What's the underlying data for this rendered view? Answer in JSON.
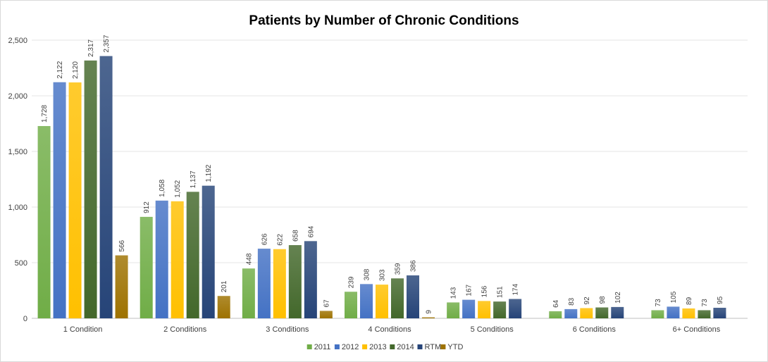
{
  "chart_data": {
    "type": "bar",
    "title": "Patients by Number of Chronic Conditions",
    "xlabel": "",
    "ylabel": "",
    "ylim": [
      0,
      2500
    ],
    "yticks": [
      0,
      500,
      1000,
      1500,
      2000,
      2500
    ],
    "ytick_labels": [
      "0",
      "500",
      "1,000",
      "1,500",
      "2,000",
      "2,500"
    ],
    "grid": true,
    "legend_position": "bottom",
    "categories": [
      "1 Condition",
      "2 Conditions",
      "3 Conditions",
      "4 Conditions",
      "5 Conditions",
      "6 Conditions",
      "6+ Conditions"
    ],
    "series": [
      {
        "name": "2011",
        "color": "#70ad47",
        "values": [
          1728,
          912,
          448,
          239,
          143,
          64,
          73
        ]
      },
      {
        "name": "2012",
        "color": "#4472c4",
        "values": [
          2122,
          1058,
          626,
          308,
          167,
          83,
          105
        ]
      },
      {
        "name": "2013",
        "color": "#ffc000",
        "values": [
          2120,
          1052,
          622,
          303,
          156,
          92,
          89
        ]
      },
      {
        "name": "2014",
        "color": "#43682b",
        "values": [
          2317,
          1137,
          658,
          359,
          151,
          98,
          73
        ]
      },
      {
        "name": "RTM",
        "color": "#264478",
        "values": [
          2357,
          1192,
          694,
          386,
          174,
          102,
          95
        ]
      },
      {
        "name": "YTD",
        "color": "#9e7200",
        "values": [
          566,
          201,
          67,
          9,
          null,
          null,
          null
        ]
      }
    ]
  }
}
